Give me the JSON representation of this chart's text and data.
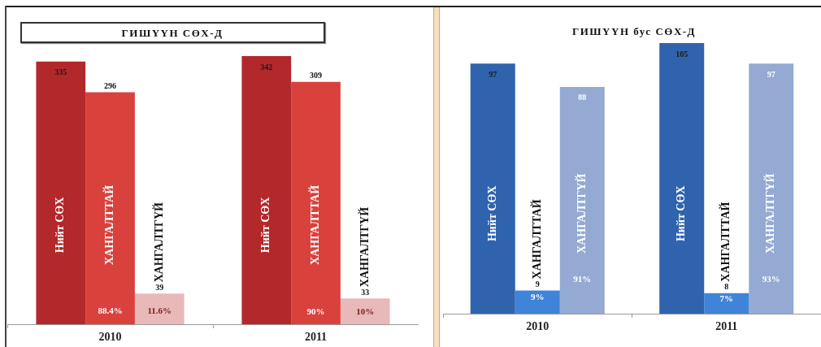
{
  "chart_data": [
    {
      "type": "bar",
      "title": "ГИШҮҮН СӨХ-Д",
      "categories": [
        "2010",
        "2011"
      ],
      "series": [
        {
          "name": "Нийт СӨХ",
          "color": "#b3282b",
          "values": [
            335,
            342
          ]
        },
        {
          "name": "ХАНГАЛТТАЙ",
          "color": "#d9413c",
          "values": [
            296,
            309
          ]
        },
        {
          "name": "ХАНГАЛТГҮЙ",
          "color": "#e9b8b8",
          "values": [
            39,
            33
          ]
        }
      ],
      "data_labels": true,
      "tick_labels": "x",
      "annotations": [
        "88.4%",
        "11.6%",
        "90%",
        "10%"
      ]
    },
    {
      "type": "bar",
      "title": "ГИШҮҮН бус СӨХ-Д",
      "categories": [
        "2010",
        "2011"
      ],
      "series": [
        {
          "name": "Нийт СӨХ",
          "color": "#2f63ad",
          "values": [
            97,
            105
          ]
        },
        {
          "name": "ХАНГАЛТТАЙ",
          "color": "#3f84d8",
          "values": [
            9,
            8
          ]
        },
        {
          "name": "ХАНГАЛТГҮЙ",
          "color": "#94aad3",
          "values": [
            88,
            97
          ]
        }
      ],
      "data_labels": true,
      "tick_labels": "x",
      "annotations": [
        "9%",
        "91%",
        "7%",
        "93%"
      ]
    }
  ]
}
